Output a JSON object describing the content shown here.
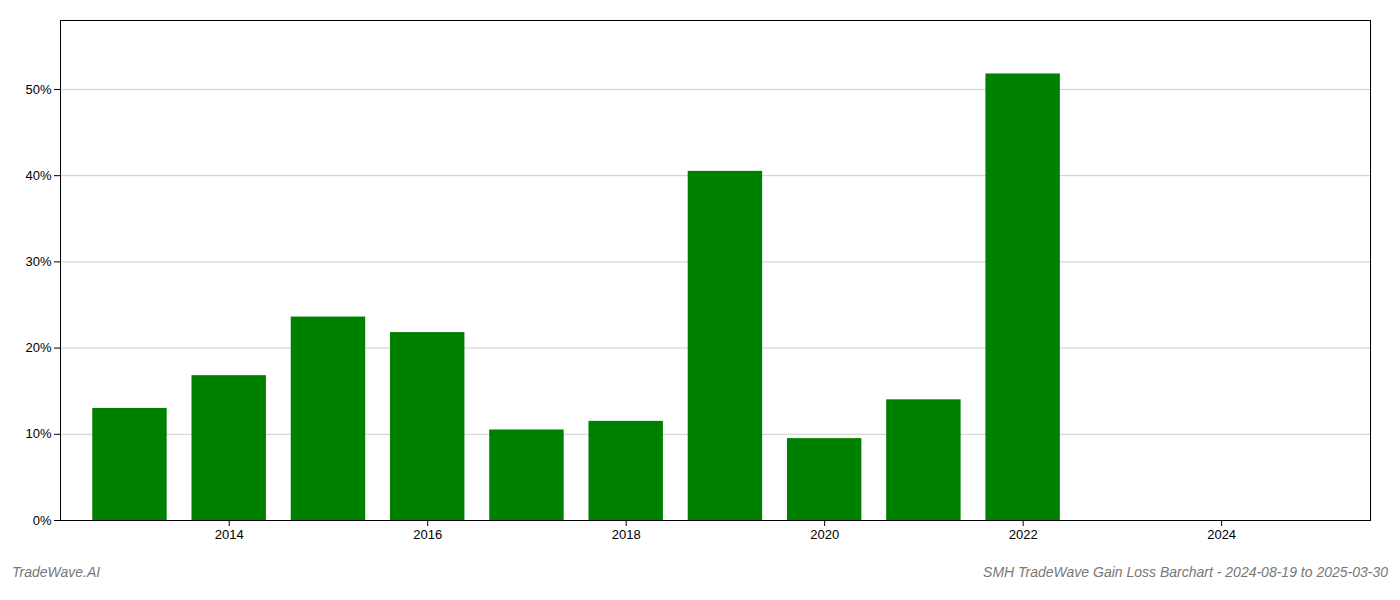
{
  "chart_data": {
    "type": "bar",
    "x": [
      2013,
      2014,
      2015,
      2016,
      2017,
      2018,
      2019,
      2020,
      2021,
      2022,
      2023
    ],
    "values": [
      0.13,
      0.168,
      0.236,
      0.218,
      0.105,
      0.115,
      0.405,
      0.095,
      0.14,
      0.518,
      0.0
    ],
    "color": "#008000",
    "xlim": [
      2012.3,
      2025.5
    ],
    "xticks": [
      2014,
      2016,
      2018,
      2020,
      2022,
      2024
    ],
    "ylim": [
      0,
      0.58
    ],
    "yticks": [
      {
        "value": 0.0,
        "label": "0%"
      },
      {
        "value": 0.1,
        "label": "10%"
      },
      {
        "value": 0.2,
        "label": "20%"
      },
      {
        "value": 0.3,
        "label": "30%"
      },
      {
        "value": 0.4,
        "label": "40%"
      },
      {
        "value": 0.5,
        "label": "50%"
      }
    ],
    "grid": true,
    "annotations": [
      "TradeWave.AI",
      "SMH TradeWave Gain Loss Barchart - 2024-08-19 to 2025-03-30"
    ]
  }
}
